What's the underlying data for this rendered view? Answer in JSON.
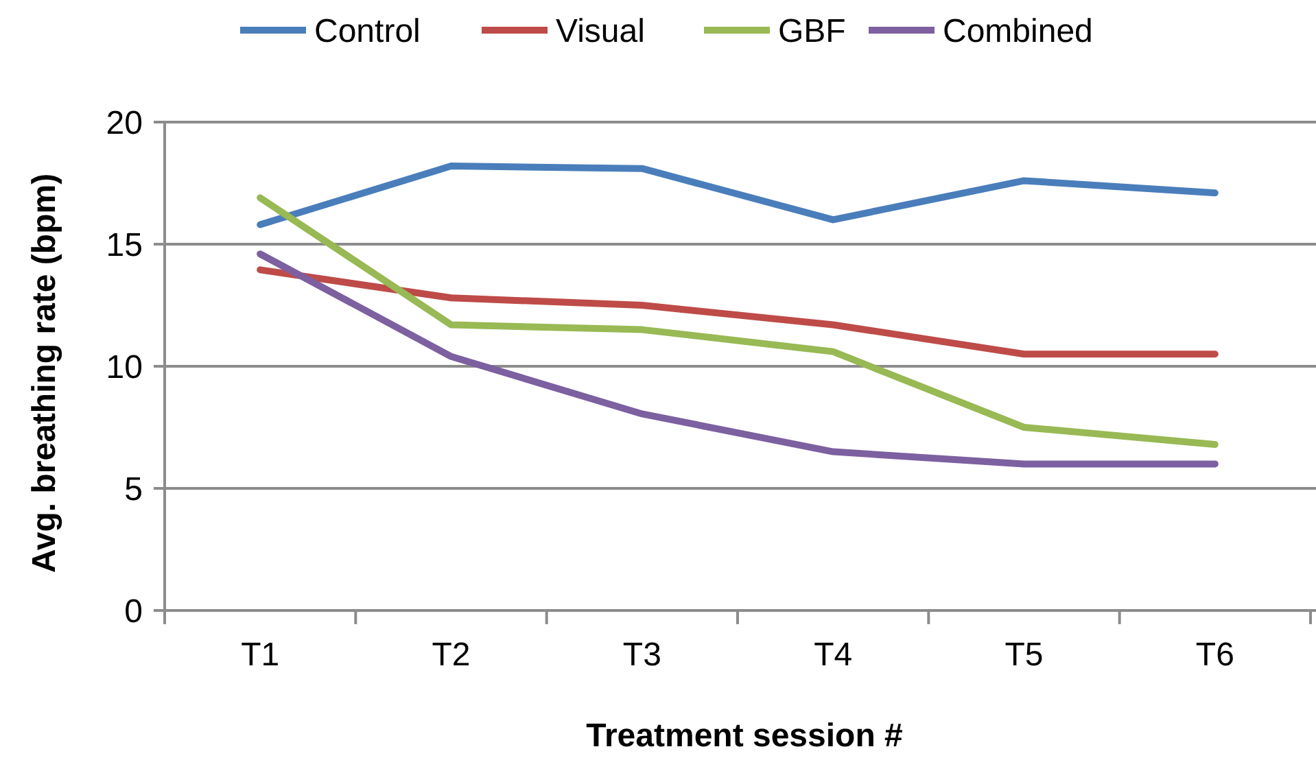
{
  "chart_data": {
    "type": "line",
    "xlabel": "Treatment session #",
    "ylabel": "Avg. breathing rate (bpm)",
    "categories": [
      "T1",
      "T2",
      "T3",
      "T4",
      "T5",
      "T6"
    ],
    "series": [
      {
        "name": "Control",
        "color": "#4a7ebb",
        "values": [
          15.8,
          18.2,
          18.1,
          16.0,
          17.6,
          17.1
        ]
      },
      {
        "name": "Visual",
        "color": "#be4b48",
        "values": [
          13.95,
          12.8,
          12.5,
          11.7,
          10.5,
          10.5
        ]
      },
      {
        "name": "GBF",
        "color": "#98b954",
        "values": [
          16.9,
          11.7,
          11.5,
          10.6,
          7.5,
          6.8
        ]
      },
      {
        "name": "Combined",
        "color": "#7d60a0",
        "values": [
          14.6,
          10.4,
          8.05,
          6.5,
          6.0,
          6.0
        ]
      }
    ],
    "ylim": [
      0,
      20
    ],
    "yticks": [
      0,
      5,
      10,
      15,
      20
    ],
    "grid": "y",
    "legend": "top",
    "marker": "none",
    "line_style": "solid"
  }
}
